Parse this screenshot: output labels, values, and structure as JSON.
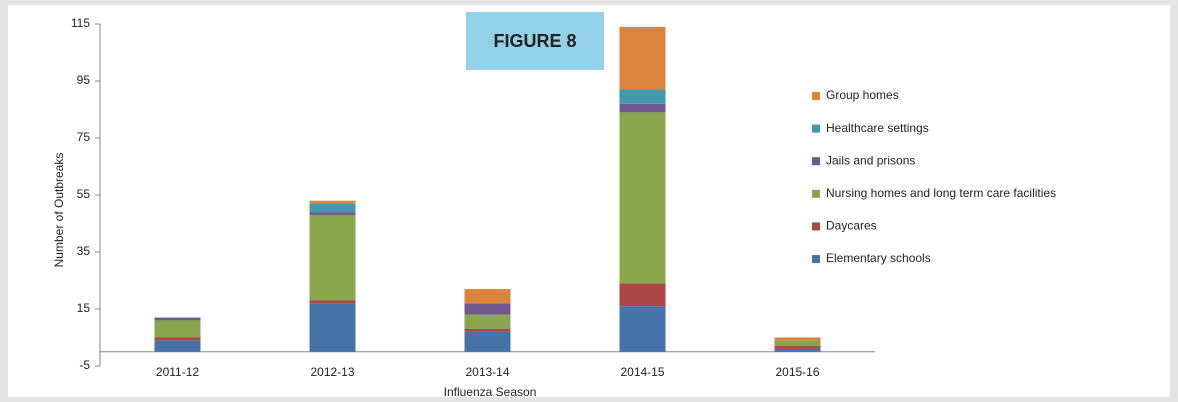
{
  "chart_data": {
    "type": "stacked_bar",
    "annotation": "FIGURE 8",
    "x_label": "Influenza Season",
    "y_label": "Number of Outbreaks",
    "categories": [
      "2011-12",
      "2012-13",
      "2013-14",
      "2014-15",
      "2015-16"
    ],
    "series": [
      {
        "name": "Elementary schools",
        "color": "#4572a7",
        "values": [
          4,
          17,
          7,
          16,
          1
        ]
      },
      {
        "name": "Daycares",
        "color": "#aa4643",
        "values": [
          1,
          1,
          1,
          8,
          1
        ]
      },
      {
        "name": "Nursing homes and long term care facilities",
        "color": "#89a54e",
        "values": [
          6,
          30,
          5,
          60,
          2
        ]
      },
      {
        "name": "Jails and prisons",
        "color": "#71588f",
        "values": [
          1,
          1,
          4,
          3,
          0
        ]
      },
      {
        "name": "Healthcare settings",
        "color": "#4198af",
        "values": [
          0,
          3,
          0,
          5,
          0
        ]
      },
      {
        "name": "Group homes",
        "color": "#db843d",
        "values": [
          0,
          1,
          5,
          22,
          1
        ]
      }
    ],
    "ylim": [
      -5,
      115
    ],
    "yticks": [
      -5,
      15,
      35,
      55,
      75,
      95,
      115
    ],
    "legend": "right"
  }
}
